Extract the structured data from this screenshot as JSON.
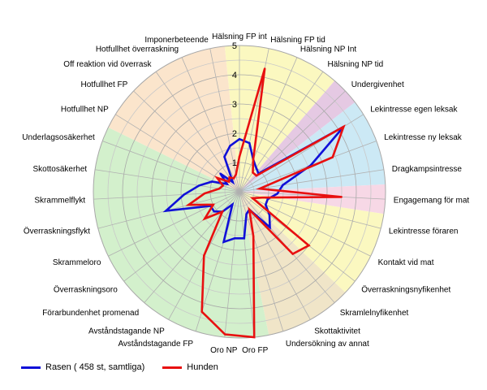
{
  "chart_data": {
    "type": "radar",
    "rmax": 5,
    "ticks": [
      "1",
      "2",
      "3",
      "4",
      "5"
    ],
    "categories": [
      "Hälsning FP int",
      "Hälsning FP tid",
      "Hälsning NP Int",
      "Hälsning NP tid",
      "Undergivenhet",
      "Lekintresse egen leksak",
      "Lekintresse ny leksak",
      "Dragkampsintresse",
      "Engagemang för mat",
      "Lekintresse föraren",
      "Kontakt vid mat",
      "Överraskningsnyfikenhet",
      "Skramlelnyfikenhet",
      "Skottaktivitet",
      "Undersökning av annat",
      "Oro FP",
      "Oro NP",
      "Avståndstagande FP",
      "Avståndstagande NP",
      "Förarbundenhet promenad",
      "Överraskningsoro",
      "Skrammeloro",
      "Överraskningsflykt",
      "Skrammelflykt",
      "Skottosäkerhet",
      "Underlagsosäkerhet",
      "Hotfullhet NP",
      "Hotfullhet FP",
      "Off reaktion vid överrask",
      "Hotfullhet överraskning",
      "Imponerbeteende"
    ],
    "series": [
      {
        "name": "Rasen ( 458 st, samtliga)",
        "color": "#1010d8",
        "values": [
          1.8,
          1.7,
          1.2,
          1.0,
          0.9,
          4.2,
          2.6,
          1.5,
          1.3,
          1.0,
          1.0,
          1.3,
          1.6,
          0.7,
          0.8,
          1.6,
          1.6,
          1.8,
          0.5,
          0.9,
          1.1,
          1.1,
          2.6,
          1.9,
          1.4,
          1.0,
          0.5,
          0.9,
          0.4,
          1.3,
          1.6
        ]
      },
      {
        "name": "Hunden",
        "color": "#e81010",
        "values": [
          1.2,
          4.3,
          1.2,
          0.8,
          0.8,
          4.2,
          3.4,
          0.7,
          3.5,
          0.8,
          0.5,
          3.0,
          2.8,
          0.7,
          1.6,
          5.0,
          4.9,
          4.3,
          2.5,
          0.9,
          1.5,
          1.0,
          1.8,
          1.2,
          0.7,
          0.6,
          0.9,
          0.5,
          0.6,
          0.5,
          0.6
        ]
      }
    ],
    "sectors": [
      {
        "from": 0,
        "to": 3,
        "color": "#fbf8c0"
      },
      {
        "from": 4,
        "to": 4,
        "color": "#e5c9e3"
      },
      {
        "from": 5,
        "to": 7,
        "color": "#cce9f5"
      },
      {
        "from": 8,
        "to": 8,
        "color": "#f7d8e6"
      },
      {
        "from": 9,
        "to": 11,
        "color": "#fbf8c0"
      },
      {
        "from": 12,
        "to": 14,
        "color": "#f0e5c8"
      },
      {
        "from": 15,
        "to": 25,
        "color": "#d3f0cc"
      },
      {
        "from": 26,
        "to": 30,
        "color": "#fbe5cc"
      }
    ]
  }
}
